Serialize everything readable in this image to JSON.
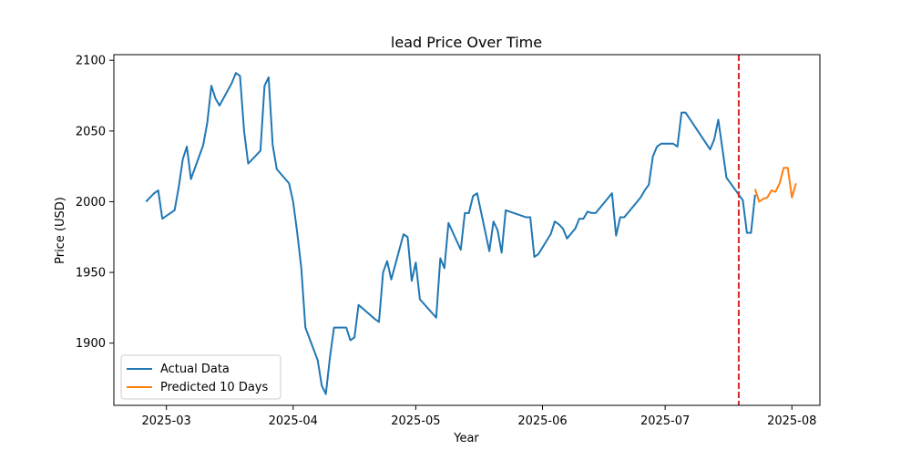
{
  "chart_data": {
    "type": "line",
    "title": "lead Price Over Time",
    "xlabel": "Year",
    "ylabel": "Price (USD)",
    "xlim": [
      "2025-02-24",
      "2025-07-31"
    ],
    "ylim": [
      1856,
      2104
    ],
    "x_ticks": [
      "2025-03-01",
      "2025-04-01",
      "2025-05-01",
      "2025-06-01",
      "2025-07-01",
      "2025-08-01"
    ],
    "x_tick_labels": [
      "2025-03",
      "2025-04",
      "2025-05",
      "2025-06",
      "2025-07",
      "2025-08"
    ],
    "y_ticks": [
      1900,
      1950,
      2000,
      2050,
      2100
    ],
    "grid": false,
    "legend_position": "lower-left",
    "vline": {
      "x": "2025-07-19",
      "color": "#d62728",
      "style": "dashed"
    },
    "series": [
      {
        "name": "Actual Data",
        "color": "#1f77b4",
        "points": [
          [
            "2025-02-24",
            2000
          ],
          [
            "2025-02-26",
            2006
          ],
          [
            "2025-02-27",
            2008
          ],
          [
            "2025-02-28",
            1988
          ],
          [
            "2025-03-03",
            1994
          ],
          [
            "2025-03-04",
            2010
          ],
          [
            "2025-03-05",
            2030
          ],
          [
            "2025-03-06",
            2039
          ],
          [
            "2025-03-07",
            2016
          ],
          [
            "2025-03-10",
            2040
          ],
          [
            "2025-03-11",
            2056
          ],
          [
            "2025-03-12",
            2082
          ],
          [
            "2025-03-13",
            2073
          ],
          [
            "2025-03-14",
            2068
          ],
          [
            "2025-03-17",
            2084
          ],
          [
            "2025-03-18",
            2091
          ],
          [
            "2025-03-19",
            2089
          ],
          [
            "2025-03-20",
            2050
          ],
          [
            "2025-03-21",
            2027
          ],
          [
            "2025-03-24",
            2036
          ],
          [
            "2025-03-25",
            2082
          ],
          [
            "2025-03-26",
            2088
          ],
          [
            "2025-03-27",
            2040
          ],
          [
            "2025-03-28",
            2023
          ],
          [
            "2025-03-31",
            2013
          ],
          [
            "2025-04-01",
            2000
          ],
          [
            "2025-04-02",
            1978
          ],
          [
            "2025-04-03",
            1953
          ],
          [
            "2025-04-04",
            1911
          ],
          [
            "2025-04-07",
            1888
          ],
          [
            "2025-04-08",
            1870
          ],
          [
            "2025-04-09",
            1864
          ],
          [
            "2025-04-10",
            1890
          ],
          [
            "2025-04-11",
            1911
          ],
          [
            "2025-04-14",
            1911
          ],
          [
            "2025-04-15",
            1902
          ],
          [
            "2025-04-16",
            1904
          ],
          [
            "2025-04-17",
            1927
          ],
          [
            "2025-04-21",
            1917
          ],
          [
            "2025-04-22",
            1915
          ],
          [
            "2025-04-23",
            1950
          ],
          [
            "2025-04-24",
            1958
          ],
          [
            "2025-04-25",
            1945
          ],
          [
            "2025-04-28",
            1977
          ],
          [
            "2025-04-29",
            1975
          ],
          [
            "2025-04-30",
            1944
          ],
          [
            "2025-05-01",
            1957
          ],
          [
            "2025-05-02",
            1931
          ],
          [
            "2025-05-06",
            1918
          ],
          [
            "2025-05-07",
            1960
          ],
          [
            "2025-05-08",
            1953
          ],
          [
            "2025-05-09",
            1985
          ],
          [
            "2025-05-12",
            1966
          ],
          [
            "2025-05-13",
            1992
          ],
          [
            "2025-05-14",
            1992
          ],
          [
            "2025-05-15",
            2004
          ],
          [
            "2025-05-16",
            2006
          ],
          [
            "2025-05-19",
            1965
          ],
          [
            "2025-05-20",
            1986
          ],
          [
            "2025-05-21",
            1980
          ],
          [
            "2025-05-22",
            1964
          ],
          [
            "2025-05-23",
            1994
          ],
          [
            "2025-05-28",
            1989
          ],
          [
            "2025-05-29",
            1989
          ],
          [
            "2025-05-30",
            1961
          ],
          [
            "2025-05-31",
            1963
          ],
          [
            "2025-06-03",
            1977
          ],
          [
            "2025-06-04",
            1986
          ],
          [
            "2025-06-05",
            1984
          ],
          [
            "2025-06-06",
            1981
          ],
          [
            "2025-06-07",
            1974
          ],
          [
            "2025-06-09",
            1981
          ],
          [
            "2025-06-10",
            1988
          ],
          [
            "2025-06-11",
            1988
          ],
          [
            "2025-06-12",
            1993
          ],
          [
            "2025-06-13",
            1992
          ],
          [
            "2025-06-14",
            1992
          ],
          [
            "2025-06-18",
            2006
          ],
          [
            "2025-06-19",
            1976
          ],
          [
            "2025-06-20",
            1989
          ],
          [
            "2025-06-21",
            1989
          ],
          [
            "2025-06-23",
            1996
          ],
          [
            "2025-06-25",
            2003
          ],
          [
            "2025-06-26",
            2008
          ],
          [
            "2025-06-27",
            2012
          ],
          [
            "2025-06-28",
            2032
          ],
          [
            "2025-06-29",
            2039
          ],
          [
            "2025-06-30",
            2041
          ],
          [
            "2025-07-02",
            2041
          ],
          [
            "2025-07-03",
            2041
          ],
          [
            "2025-07-04",
            2039
          ],
          [
            "2025-07-05",
            2063
          ],
          [
            "2025-07-06",
            2063
          ],
          [
            "2025-07-09",
            2050
          ],
          [
            "2025-07-12",
            2037
          ],
          [
            "2025-07-13",
            2044
          ],
          [
            "2025-07-14",
            2058
          ],
          [
            "2025-07-16",
            2017
          ],
          [
            "2025-07-20",
            2001
          ],
          [
            "2025-07-21",
            1978
          ],
          [
            "2025-07-22",
            1978
          ],
          [
            "2025-07-23",
            2005
          ]
        ]
      },
      {
        "name": "Predicted 10 Days",
        "color": "#ff7f0e",
        "points": [
          [
            "2025-07-23",
            2009
          ],
          [
            "2025-07-24",
            2000
          ],
          [
            "2025-07-25",
            2002
          ],
          [
            "2025-07-26",
            2003
          ],
          [
            "2025-07-27",
            2008
          ],
          [
            "2025-07-28",
            2007
          ],
          [
            "2025-07-29",
            2013
          ],
          [
            "2025-07-30",
            2024
          ],
          [
            "2025-07-31",
            2024
          ],
          [
            "2025-08-01",
            2003
          ],
          [
            "2025-08-02",
            2013
          ]
        ]
      }
    ]
  }
}
